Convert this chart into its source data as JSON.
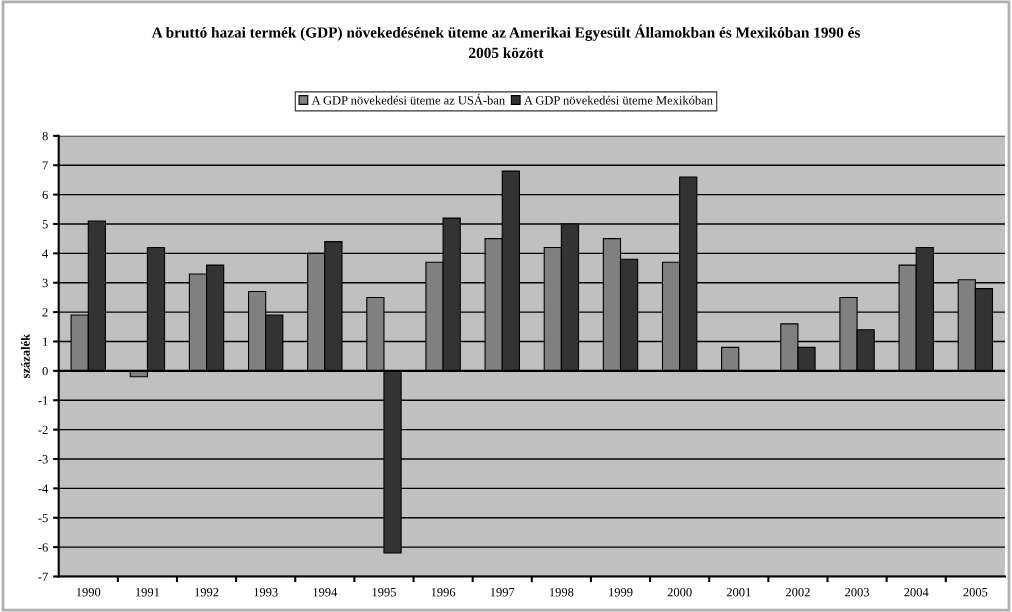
{
  "chart_data": {
    "type": "bar",
    "title": "A bruttó hazai termék (GDP) növekedésének üteme az Amerikai Egyesült Államokban és Mexikóban 1990 és\n2005 között",
    "ylabel": "százalék",
    "categories": [
      "1990",
      "1991",
      "1992",
      "1993",
      "1994",
      "1995",
      "1996",
      "1997",
      "1998",
      "1999",
      "2000",
      "2001",
      "2002",
      "2003",
      "2004",
      "2005"
    ],
    "series": [
      {
        "name": "A GDP növekedési üteme az USÁ-ban",
        "color": "#808080",
        "values": [
          1.9,
          -0.2,
          3.3,
          2.7,
          4.0,
          2.5,
          3.7,
          4.5,
          4.2,
          4.5,
          3.7,
          0.8,
          1.6,
          2.5,
          3.6,
          3.1
        ]
      },
      {
        "name": "A GDP növekedési üteme Mexikóban",
        "color": "#333333",
        "values": [
          5.1,
          4.2,
          3.6,
          1.9,
          4.4,
          -6.2,
          5.2,
          6.8,
          5.0,
          3.8,
          6.6,
          null,
          0.8,
          1.4,
          4.2,
          2.8
        ]
      }
    ],
    "ylim": [
      -7,
      8
    ],
    "yticks": [
      -7,
      -6,
      -5,
      -4,
      -3,
      -2,
      -1,
      0,
      1,
      2,
      3,
      4,
      5,
      6,
      7,
      8
    ],
    "grid": "y",
    "legend": "top"
  }
}
